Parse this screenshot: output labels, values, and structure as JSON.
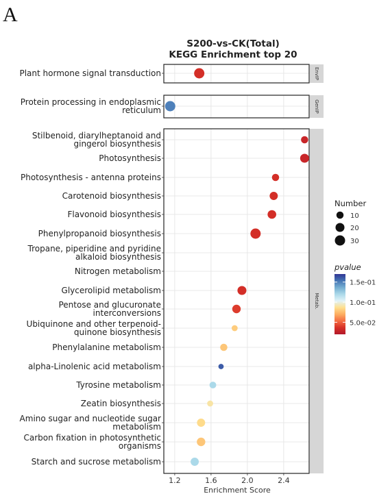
{
  "panel_label": "A",
  "chart_data": {
    "type": "scatter",
    "title": "S200-vs-CK(Total)",
    "subtitle": "KEGG Enrichment top 20",
    "xlabel": "Enrichment Score",
    "ylabel": "",
    "xlim": [
      1.08,
      2.68
    ],
    "xticks": [
      "1.2",
      "1.6",
      "2.0",
      "2.4"
    ],
    "xtick_values": [
      1.2,
      1.6,
      2.0,
      2.4
    ],
    "grid": true,
    "facets": [
      {
        "strip": "EnvIP",
        "points": [
          {
            "term": "Plant hormone signal transduction",
            "x": 1.47,
            "number": 30,
            "pvalue": 0.035
          }
        ]
      },
      {
        "strip": "GenIP",
        "points": [
          {
            "term": "Protein processing in endoplasmic reticulum",
            "x": 1.15,
            "number": 30,
            "pvalue": 0.15
          }
        ]
      },
      {
        "strip": "Metab.",
        "points": [
          {
            "term": "Stilbenoid, diarylheptanoid and gingerol biosynthesis",
            "x": 2.63,
            "number": 10,
            "pvalue": 0.03
          },
          {
            "term": "Photosynthesis",
            "x": 2.63,
            "number": 20,
            "pvalue": 0.03
          },
          {
            "term": "Photosynthesis - antenna proteins",
            "x": 2.31,
            "number": 10,
            "pvalue": 0.035
          },
          {
            "term": "Carotenoid biosynthesis",
            "x": 2.29,
            "number": 15,
            "pvalue": 0.035
          },
          {
            "term": "Flavonoid biosynthesis",
            "x": 2.27,
            "number": 18,
            "pvalue": 0.035
          },
          {
            "term": "Phenylpropanoid biosynthesis",
            "x": 2.09,
            "number": 30,
            "pvalue": 0.035
          },
          {
            "term": "Tropane, piperidine and pyridine alkaloid biosynthesis",
            "x": null,
            "number": null,
            "pvalue": null
          },
          {
            "term": "Nitrogen metabolism",
            "x": null,
            "number": null,
            "pvalue": null
          },
          {
            "term": "Glycerolipid metabolism",
            "x": 1.94,
            "number": 20,
            "pvalue": 0.035
          },
          {
            "term": "Pentose and glucuronate interconversions",
            "x": 1.88,
            "number": 17,
            "pvalue": 0.04
          },
          {
            "term": "Ubiquinone and other terpenoid-quinone biosynthesis",
            "x": 1.86,
            "number": 5,
            "pvalue": 0.08
          },
          {
            "term": "Phenylalanine metabolism",
            "x": 1.74,
            "number": 10,
            "pvalue": 0.078
          },
          {
            "term": "alpha-Linolenic acid metabolism",
            "x": 1.71,
            "number": 3,
            "pvalue": 0.16
          },
          {
            "term": "Tyrosine metabolism",
            "x": 1.62,
            "number": 8,
            "pvalue": 0.12
          },
          {
            "term": "Zeatin biosynthesis",
            "x": 1.59,
            "number": 5,
            "pvalue": 0.09
          },
          {
            "term": "Amino sugar and nucleotide sugar metabolism",
            "x": 1.49,
            "number": 15,
            "pvalue": 0.085
          },
          {
            "term": "Carbon fixation in photosynthetic organisms",
            "x": 1.49,
            "number": 17,
            "pvalue": 0.078
          },
          {
            "term": "Starch and sucrose metabolism",
            "x": 1.42,
            "number": 15,
            "pvalue": 0.12
          }
        ]
      }
    ],
    "legend_size": {
      "title": "Number",
      "entries": [
        {
          "label": "10",
          "value": 10
        },
        {
          "label": "20",
          "value": 20
        },
        {
          "label": "30",
          "value": 30
        }
      ]
    },
    "legend_color": {
      "title": "pvalue",
      "labels": [
        "1.5e-01",
        "1.0e-01",
        "5.0e-02"
      ],
      "label_values": [
        0.15,
        0.1,
        0.05
      ],
      "range": [
        0.02,
        0.17
      ],
      "colors_low_to_high": [
        "#b2182b",
        "#d73027",
        "#f46d43",
        "#fdae61",
        "#fee090",
        "#e0f3f8",
        "#abd9e9",
        "#74add1",
        "#4575b4",
        "#313695"
      ]
    }
  }
}
